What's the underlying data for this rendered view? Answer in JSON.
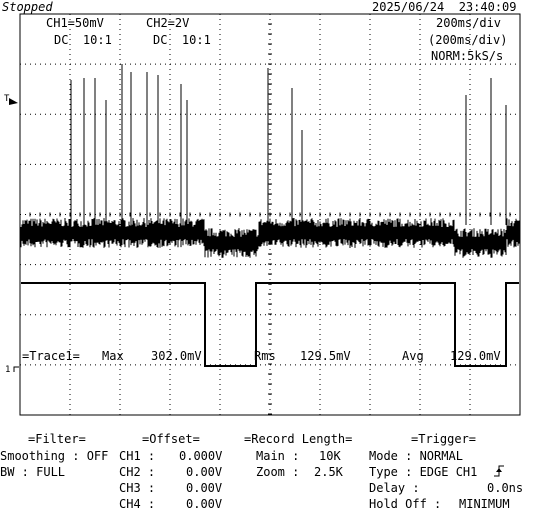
{
  "header": {
    "status": "Stopped",
    "datetime": "2025/06/24  23:40:09",
    "ch1_scale": "CH1=50mV",
    "ch1_coupling": "DC  10:1",
    "ch2_scale": "CH2=2V",
    "ch2_coupling": "DC  10:1",
    "timebase": "200ms/div",
    "timebase_sub": "(200ms/div)",
    "acq": "NORM:5kS/s"
  },
  "markers": {
    "trigger_level": "T",
    "ch1_ground": "1"
  },
  "measurement": {
    "trace_label": "=Trace1=",
    "max_label": "Max",
    "max_value": "302.0mV",
    "rms_label": "Rms",
    "rms_value": "129.5mV",
    "avg_label": "Avg",
    "avg_value": "129.0mV"
  },
  "filter": {
    "title": "=Filter=",
    "smoothing": "Smoothing : OFF",
    "bw": "BW : FULL"
  },
  "offset": {
    "title": "=Offset=",
    "rows": [
      {
        "ch": "CH1 :",
        "value": "0.000V"
      },
      {
        "ch": "CH2 :",
        "value": "0.00V"
      },
      {
        "ch": "CH3 :",
        "value": "0.00V"
      },
      {
        "ch": "CH4 :",
        "value": "0.00V"
      }
    ]
  },
  "record": {
    "title": "=Record Length=",
    "main_label": "Main :",
    "main_value": "10K",
    "zoom_label": "Zoom :",
    "zoom_value": "2.5K"
  },
  "trigger": {
    "title": "=Trigger=",
    "mode": "Mode : NORMAL",
    "type": "Type : EDGE CH1",
    "delay_label": "Delay :",
    "delay_value": "0.0ns",
    "holdoff_label": "Hold Off :",
    "holdoff_value": "MINIMUM"
  }
}
